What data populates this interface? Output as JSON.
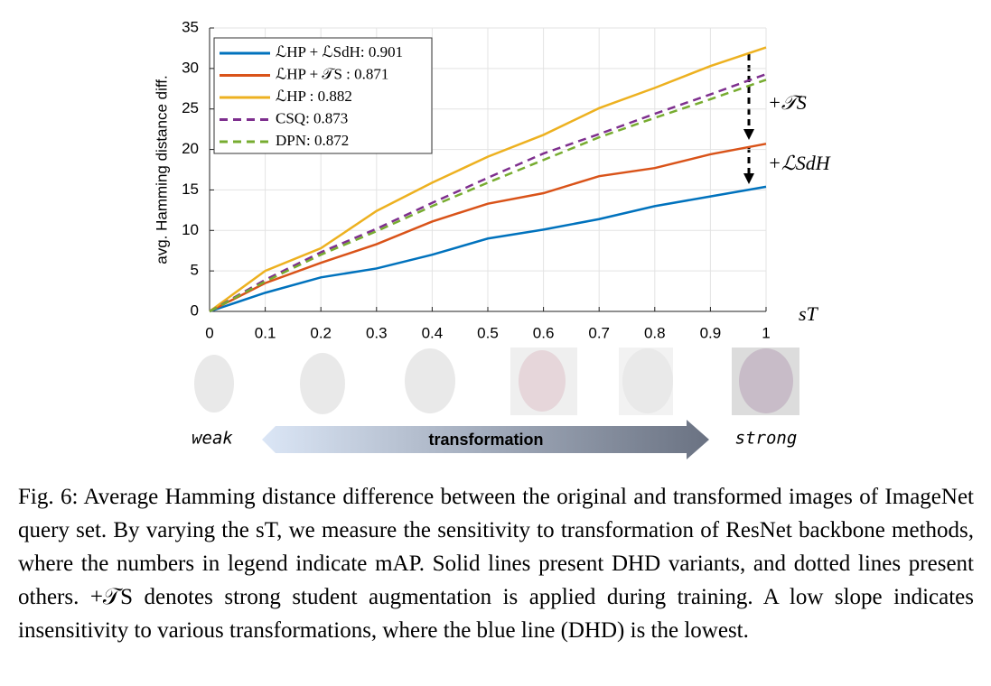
{
  "chart_data": {
    "type": "line",
    "x": [
      0,
      0.1,
      0.2,
      0.3,
      0.4,
      0.5,
      0.6,
      0.7,
      0.8,
      0.9,
      1
    ],
    "xlim": [
      0,
      1
    ],
    "xticks": [
      0,
      0.1,
      0.2,
      0.3,
      0.4,
      0.5,
      0.6,
      0.7,
      0.8,
      0.9,
      1
    ],
    "ylim": [
      0,
      35
    ],
    "yticks": [
      0,
      5,
      10,
      15,
      20,
      25,
      30,
      35
    ],
    "grid": true,
    "legend": "upper left",
    "y_label": "avg. Hamming distance diff.",
    "x_label": "sT",
    "series": [
      {
        "name": "ℒHP + ℒSdH: 0.901",
        "color": "#0072bd",
        "dash": "solid",
        "values": [
          0,
          2.3,
          4.2,
          5.3,
          7.0,
          9.0,
          10.1,
          11.4,
          13.0,
          14.2,
          15.4
        ]
      },
      {
        "name": "ℒHP + 𝒯S : 0.871",
        "color": "#d95319",
        "dash": "solid",
        "values": [
          0,
          3.5,
          6.0,
          8.3,
          11.1,
          13.3,
          14.6,
          16.7,
          17.7,
          19.4,
          20.7
        ]
      },
      {
        "name": "ℒHP : 0.882",
        "color": "#edb120",
        "dash": "solid",
        "values": [
          0,
          5.0,
          7.8,
          12.4,
          15.9,
          19.1,
          21.8,
          25.1,
          27.6,
          30.3,
          32.6
        ]
      },
      {
        "name": "CSQ: 0.873",
        "color": "#7e2f8e",
        "dash": "dashed",
        "values": [
          0,
          3.9,
          7.3,
          10.2,
          13.4,
          16.5,
          19.5,
          21.9,
          24.4,
          26.8,
          29.3
        ]
      },
      {
        "name": "DPN: 0.872",
        "color": "#77ac30",
        "dash": "dashed",
        "values": [
          0,
          3.7,
          7.0,
          9.9,
          13.0,
          15.9,
          18.7,
          21.5,
          23.9,
          26.2,
          28.6
        ]
      }
    ],
    "annotations": [
      "+𝒯S",
      "+ℒSdH"
    ]
  },
  "figure": {
    "weak": "weak",
    "transformation": "transformation",
    "strong": "strong",
    "caption": "Fig. 6: Average Hamming distance difference between the original and transformed images of ImageNet query set. By varying the sT, we measure the sensitivity to transformation of ResNet backbone methods, where the numbers in legend indicate mAP. Solid lines present DHD variants, and dotted lines present others. +𝒯S denotes strong student augmentation is applied during training. A low slope indicates insensitivity to various transformations, where the blue line (DHD) is the lowest."
  }
}
